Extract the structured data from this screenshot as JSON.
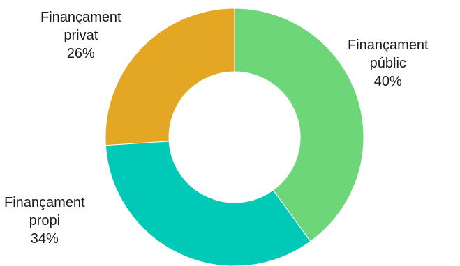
{
  "chart_data": {
    "type": "pie",
    "donut": true,
    "slices": [
      {
        "name": "Finançament públic",
        "label_lines": [
          "Finançament",
          "públic"
        ],
        "value": 40,
        "value_label": "40%",
        "color": "#6dd678"
      },
      {
        "name": "Finançament propi",
        "label_lines": [
          "Finançament",
          "propi"
        ],
        "value": 34,
        "value_label": "34%",
        "color": "#00c9b7"
      },
      {
        "name": "Finançament privat",
        "label_lines": [
          "Finançament",
          "privat"
        ],
        "value": 26,
        "value_label": "26%",
        "color": "#e4a723"
      }
    ],
    "start": "top",
    "direction": "clockwise",
    "legend": "none"
  }
}
